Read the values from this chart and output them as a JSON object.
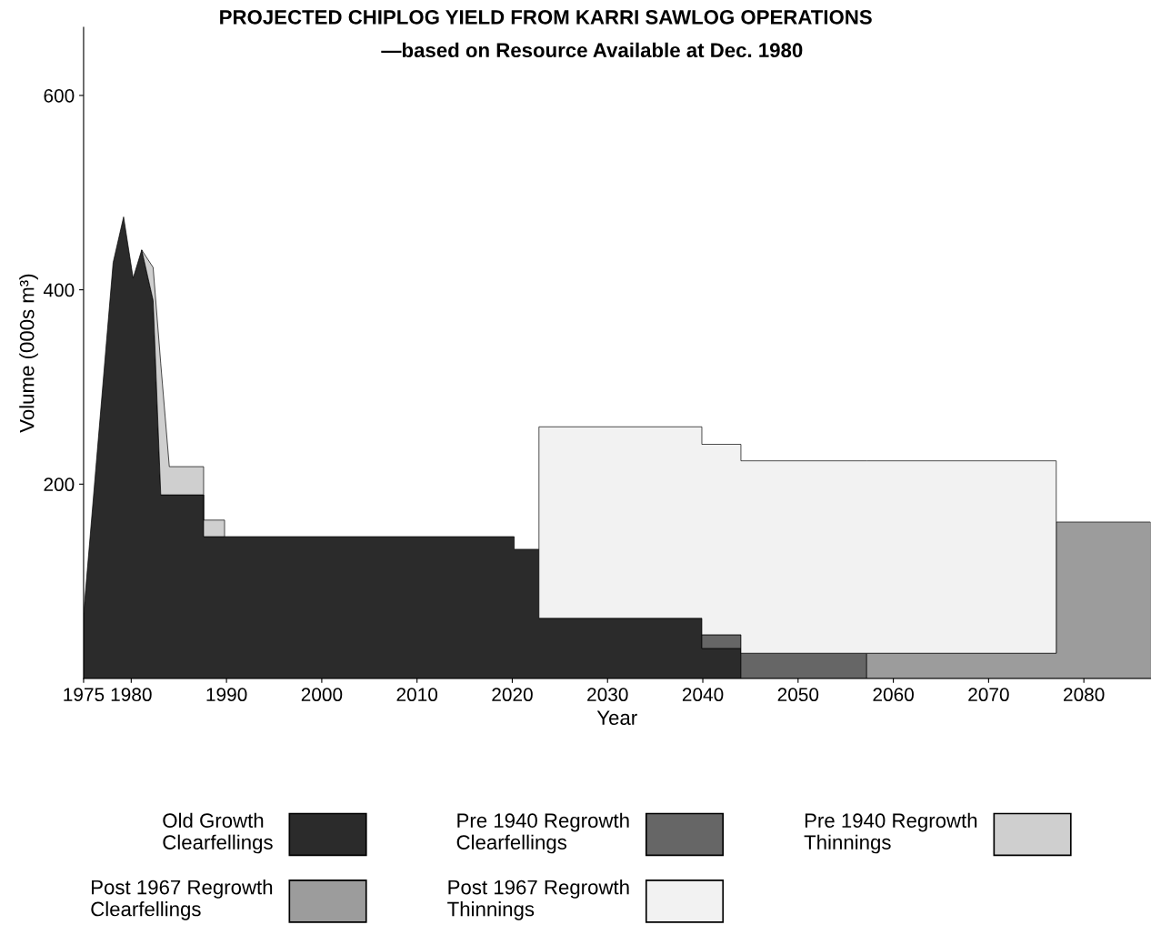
{
  "chart_data": {
    "type": "area",
    "stacked": true,
    "title": "PROJECTED CHIPLOG YIELD FROM KARRI SAWLOG OPERATIONS",
    "subtitle": "—based on Resource Available at Dec. 1980",
    "xlabel": "Year",
    "ylabel": "Volume (000s m³)",
    "x": [
      1975,
      1978.1,
      1979.2,
      1980.2,
      1981.1,
      1982.3,
      1983.1,
      1984.0,
      1987.6,
      1987.6,
      1989.8,
      1989.8,
      2020.2,
      2020.2,
      2022.8,
      2022.8,
      2039.9,
      2039.9,
      2044.0,
      2044.0,
      2057.2,
      2057.2,
      2077.1,
      2077.1,
      2087
    ],
    "series": [
      {
        "name": "Old Growth\nClearfellings",
        "color": "#2b2b2b",
        "values": [
          66,
          428,
          475,
          412,
          441,
          389,
          189,
          189,
          189,
          146,
          146,
          146,
          146,
          133,
          133,
          62,
          62,
          31,
          31,
          null,
          null,
          null,
          null,
          null,
          null
        ]
      },
      {
        "name": "Pre 1940 Regrowth\nClearfellings",
        "color": "#666666",
        "values": [
          null,
          null,
          null,
          null,
          null,
          null,
          null,
          null,
          null,
          null,
          null,
          null,
          null,
          null,
          null,
          null,
          null,
          14,
          14,
          26,
          26,
          null,
          null,
          null,
          null
        ]
      },
      {
        "name": "Pre 1940 Regrowth\nThinnings",
        "color": "#cfcfcf",
        "values": [
          null,
          null,
          null,
          null,
          0,
          34,
          135,
          29,
          29,
          17,
          17,
          null,
          null,
          null,
          null,
          null,
          null,
          null,
          null,
          null,
          null,
          null,
          null,
          null,
          null
        ]
      },
      {
        "name": "Post 1967 Regrowth\nClearfellings",
        "color": "#9c9c9c",
        "values": [
          null,
          null,
          null,
          null,
          null,
          null,
          null,
          null,
          null,
          null,
          null,
          null,
          null,
          null,
          null,
          null,
          null,
          null,
          null,
          null,
          null,
          26,
          26,
          161,
          161
        ]
      },
      {
        "name": "Post 1967 Regrowth\nThinnings",
        "color": "#f2f2f2",
        "values": [
          null,
          null,
          null,
          null,
          null,
          null,
          null,
          null,
          null,
          null,
          null,
          null,
          null,
          null,
          null,
          197,
          197,
          196,
          196,
          198,
          198,
          198,
          198,
          null,
          null
        ]
      }
    ],
    "xlim": [
      1975,
      2087
    ],
    "xticks": [
      1975,
      1980,
      1990,
      2000,
      2010,
      2020,
      2030,
      2040,
      2050,
      2060,
      2070,
      2080
    ],
    "ylim": [
      0,
      670
    ],
    "yticks": [
      200,
      400,
      600
    ],
    "grid": false,
    "legend": "bottom"
  }
}
